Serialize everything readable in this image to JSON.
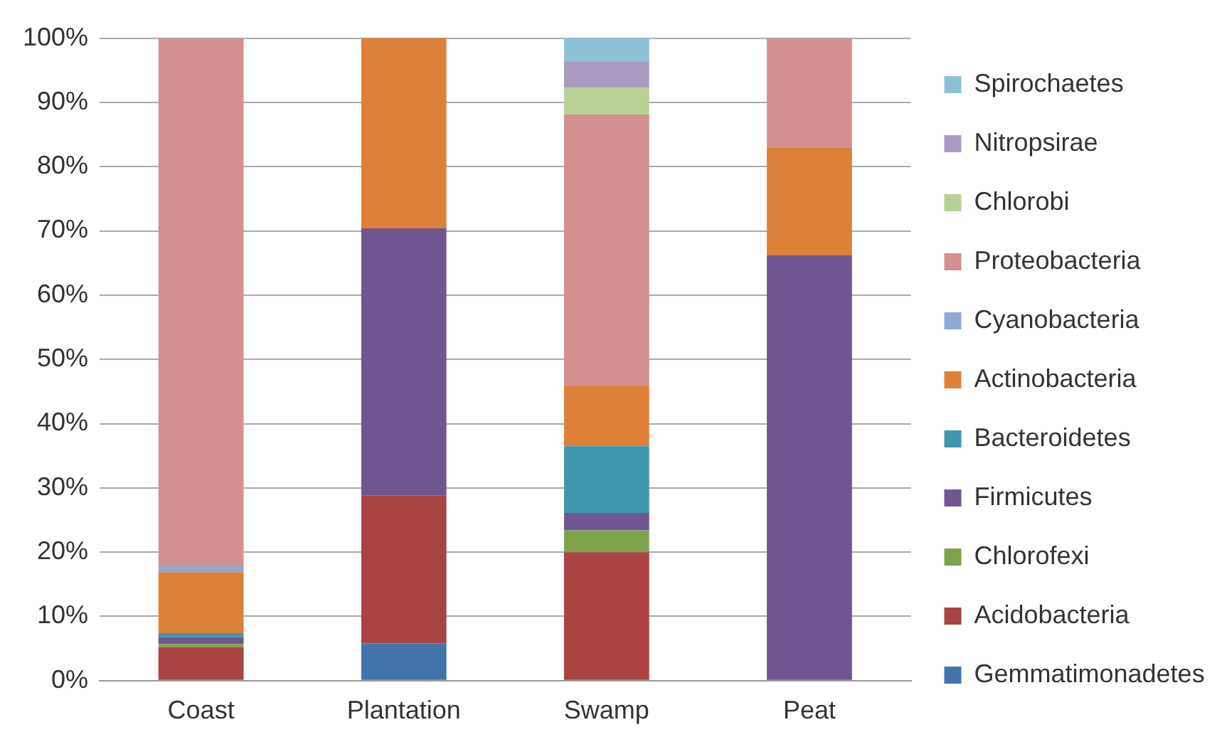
{
  "chart_data": {
    "type": "bar",
    "stacked": true,
    "categories": [
      "Coast",
      "Plantation",
      "Swamp",
      "Peat"
    ],
    "series": [
      {
        "name": "Gemmatimonadetes",
        "color": "#4373ad",
        "values": [
          0,
          5.8,
          0,
          0
        ]
      },
      {
        "name": "Acidobacteria",
        "color": "#a94442",
        "values": [
          5.2,
          23.0,
          20.0,
          0
        ]
      },
      {
        "name": "Chlorofexi",
        "color": "#7ea34a",
        "values": [
          0.5,
          0,
          3.4,
          0
        ]
      },
      {
        "name": "Firmicutes",
        "color": "#6f5690",
        "values": [
          1.1,
          41.6,
          2.7,
          66.2
        ]
      },
      {
        "name": "Bacteroidetes",
        "color": "#3e97ae",
        "values": [
          0.6,
          0,
          10.4,
          0
        ]
      },
      {
        "name": "Actinobacteria",
        "color": "#dd8139",
        "values": [
          9.5,
          29.6,
          9.5,
          16.8
        ]
      },
      {
        "name": "Cyanobacteria",
        "color": "#8fa9d6",
        "values": [
          0.9,
          0,
          0,
          0
        ]
      },
      {
        "name": "Proteobacteria",
        "color": "#d39090",
        "values": [
          82.2,
          0,
          42.1,
          17.0
        ]
      },
      {
        "name": "Chlorobi",
        "color": "#b9d096",
        "values": [
          0,
          0,
          4.2,
          0
        ]
      },
      {
        "name": "Nitropsirae",
        "color": "#a99bc4",
        "values": [
          0,
          0,
          4.0,
          0
        ]
      },
      {
        "name": "Spirochaetes",
        "color": "#8dc2d6",
        "values": [
          0,
          0,
          3.8,
          0
        ]
      }
    ],
    "ylim": [
      0,
      100
    ],
    "yticks": [
      {
        "value": 0,
        "label": "0%"
      },
      {
        "value": 10,
        "label": "10%"
      },
      {
        "value": 20,
        "label": "20%"
      },
      {
        "value": 30,
        "label": "30%"
      },
      {
        "value": 40,
        "label": "40%"
      },
      {
        "value": 50,
        "label": "50%"
      },
      {
        "value": 60,
        "label": "60%"
      },
      {
        "value": 70,
        "label": "70%"
      },
      {
        "value": 80,
        "label": "80%"
      },
      {
        "value": 90,
        "label": "90%"
      },
      {
        "value": 100,
        "label": "100%"
      }
    ],
    "grid": "y",
    "legend": "right"
  }
}
